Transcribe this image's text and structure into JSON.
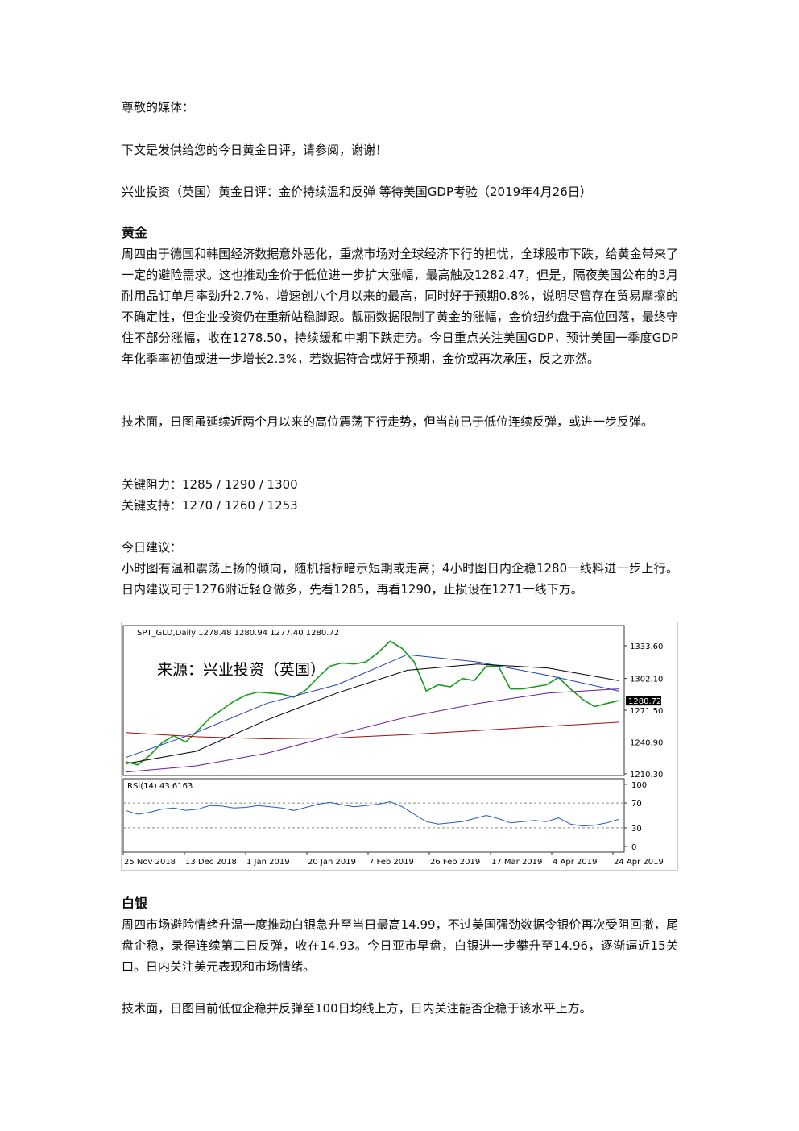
{
  "salutation": "尊敬的媒体：",
  "intro": "下文是发供给您的今日黄金日评，请参阅，谢谢！",
  "headline": "兴业投资（英国）黄金日评：金价持续温和反弹 等待美国GDP考验（2019年4月26日）",
  "gold": {
    "heading": "黄金",
    "paragraph": "周四由于德国和韩国经济数据意外恶化，重燃市场对全球经济下行的担忧，全球股市下跌，给黄金带来了一定的避险需求。这也推动金价于低位进一步扩大涨幅，最高触及1282.47，但是，隔夜美国公布的3月耐用品订单月率劲升2.7%，增速创八个月以来的最高，同时好于预期0.8%，说明尽管存在贸易摩擦的不确定性，但企业投资仍在重新站稳脚跟。靓丽数据限制了黄金的涨幅，金价纽约盘于高位回落，最终守住不部分涨幅，收在1278.50，持续缓和中期下跌走势。今日重点关注美国GDP，预计美国一季度GDP年化季率初值或进一步增长2.3%，若数据符合或好于预期，金价或再次承压，反之亦然。",
    "technical": "技术面，日图虽延续近两个月以来的高位震荡下行走势，但当前已于低位连续反弹，或进一步反弹。",
    "resistance": "关键阻力：1285 / 1290 / 1300",
    "support": "关键支持：1270 / 1260 / 1253",
    "advice_heading": "今日建议：",
    "advice": "小时图有温和震荡上扬的倾向，随机指标暗示短期或走高；4小时图日内企稳1280一线料进一步上行。日内建议可于1276附近轻仓做多，先看1285，再看1290，止损设在1271一线下方。"
  },
  "chart_data": {
    "type": "line",
    "title": "SPT_GLD,Daily 1278.48 1280.94 1277.40 1280.72",
    "watermark": "来源：兴业投资（英国）",
    "xtick_labels": [
      "25 Nov 2018",
      "13 Dec 2018",
      "1 Jan 2019",
      "20 Jan 2019",
      "7 Feb 2019",
      "26 Feb 2019",
      "17 Mar 2019",
      "4 Apr 2019",
      "24 Apr 2019"
    ],
    "series": [
      {
        "color": "#1a9a1a",
        "values": [
          1222,
          1219,
          1228,
          1240,
          1247,
          1241,
          1252,
          1264,
          1272,
          1280,
          1286,
          1289,
          1288,
          1287,
          1284,
          1291,
          1303,
          1314,
          1317,
          1316,
          1318,
          1327,
          1338,
          1331,
          1318,
          1290,
          1296,
          1294,
          1302,
          1300,
          1314,
          1314,
          1292,
          1292,
          1294,
          1296,
          1303,
          1292,
          1282,
          1275,
          1278,
          1280.72
        ]
      },
      {
        "color": "#1f3fbf",
        "values": [
          1226,
          1250,
          1278,
          1296,
          1325,
          1318,
          1305,
          1290
        ]
      },
      {
        "color": "#000000",
        "values": [
          1220,
          1232,
          1262,
          1288,
          1310,
          1316,
          1312,
          1300
        ]
      },
      {
        "color": "#6a1a9a",
        "values": [
          1212,
          1218,
          1230,
          1248,
          1265,
          1278,
          1288,
          1292
        ]
      },
      {
        "color": "#a01010",
        "values": [
          1250,
          1246,
          1244,
          1245,
          1248,
          1252,
          1256,
          1260
        ]
      }
    ],
    "ylim": [
      1208.7,
      1353
    ],
    "yticks": [
      {
        "value": 1333.6,
        "label": "1333.60"
      },
      {
        "value": 1302.1,
        "label": "1302.10"
      },
      {
        "value": 1271.5,
        "label": "1271.50"
      },
      {
        "value": 1240.9,
        "label": "1240.90"
      },
      {
        "value": 1210.3,
        "label": "1210.30"
      }
    ],
    "last_price": {
      "value": 1280.72,
      "label": "1280.72"
    },
    "rsi": {
      "title": "RSI(14) 43.6163",
      "color": "#1f5fbf",
      "ylim": [
        -9,
        109
      ],
      "yticks": [
        100,
        70,
        30,
        0
      ],
      "levels": [
        70,
        30
      ],
      "values": [
        58,
        52,
        55,
        60,
        62,
        58,
        60,
        66,
        65,
        62,
        63,
        66,
        64,
        62,
        58,
        63,
        68,
        71,
        67,
        64,
        66,
        68,
        72,
        64,
        52,
        40,
        36,
        38,
        40,
        45,
        50,
        45,
        38,
        40,
        42,
        40,
        46,
        36,
        33,
        34,
        38,
        43.6163
      ]
    }
  },
  "silver": {
    "heading": "白银",
    "paragraph": "周四市场避险情绪升温一度推动白银急升至当日最高14.99，不过美国强劲数据令银价再次受阻回撤，尾盘企稳，录得连续第二日反弹，收在14.93。今日亚市早盘，白银进一步攀升至14.96，逐渐逼近15关口。日内关注美元表现和市场情绪。",
    "technical": "技术面，日图目前低位企稳并反弹至100日均线上方，日内关注能否企稳于该水平上方。"
  }
}
